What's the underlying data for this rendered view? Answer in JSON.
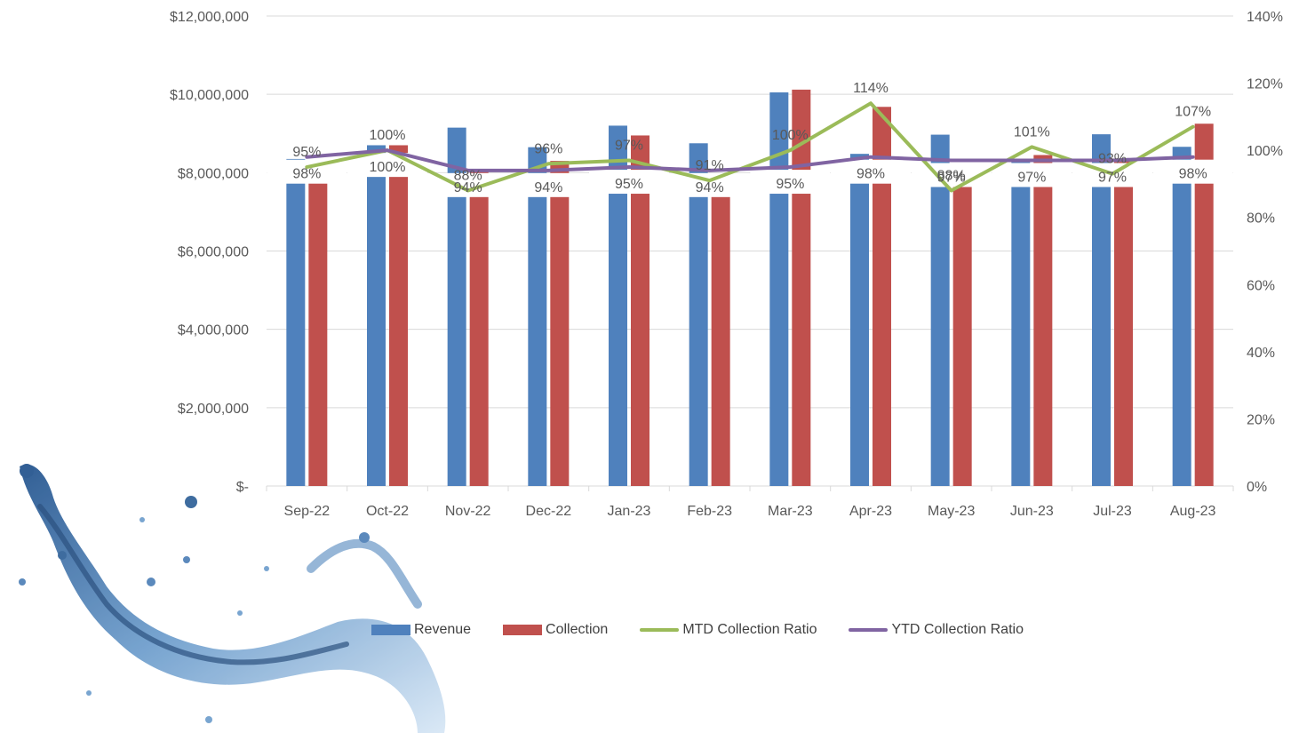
{
  "chart_data": {
    "type": "bar",
    "categories": [
      "Sep-22",
      "Oct-22",
      "Nov-22",
      "Dec-22",
      "Jan-23",
      "Feb-23",
      "Mar-23",
      "Apr-23",
      "May-23",
      "Jun-23",
      "Jul-23",
      "Aug-23"
    ],
    "y_left": {
      "ylim": [
        0,
        12000000
      ],
      "tick_labels": [
        "$-",
        "$2,000,000",
        "$4,000,000",
        "$6,000,000",
        "$8,000,000",
        "$10,000,000",
        "$12,000,000"
      ]
    },
    "y_right": {
      "ylim": [
        0,
        1.4
      ],
      "tick_labels": [
        "0%",
        "20%",
        "40%",
        "60%",
        "80%",
        "100%",
        "120%",
        "140%"
      ]
    },
    "grid": true,
    "legend_position": "bottom",
    "series": [
      {
        "name": "Revenue",
        "kind": "bar",
        "axis": "left",
        "color": "#4F81BD",
        "values": [
          8350000,
          8700000,
          9150000,
          8650000,
          9200000,
          8750000,
          10050000,
          8480000,
          8970000,
          8350000,
          8980000,
          8660000
        ]
      },
      {
        "name": "Collection",
        "kind": "bar",
        "axis": "left",
        "color": "#C0504D",
        "values": [
          7950000,
          8700000,
          8050000,
          8300000,
          8950000,
          7980000,
          10120000,
          9680000,
          7930000,
          8450000,
          8350000,
          9250000
        ]
      },
      {
        "name": "MTD Collection Ratio",
        "kind": "line",
        "axis": "right",
        "color": "#9BBB59",
        "values": [
          0.95,
          1.0,
          0.88,
          0.96,
          0.97,
          0.91,
          1.0,
          1.14,
          0.88,
          1.01,
          0.93,
          1.07
        ],
        "labels": [
          "95%",
          "100%",
          "88%",
          "96%",
          "97%",
          "91%",
          "100%",
          "114%",
          "88%",
          "101%",
          "93%",
          "107%"
        ]
      },
      {
        "name": "YTD Collection Ratio",
        "kind": "line",
        "axis": "right",
        "color": "#8064A2",
        "values": [
          0.98,
          1.0,
          0.94,
          0.94,
          0.95,
          0.94,
          0.95,
          0.98,
          0.97,
          0.97,
          0.97,
          0.98
        ],
        "labels": [
          "98%",
          "100%",
          "94%",
          "94%",
          "95%",
          "94%",
          "95%",
          "98%",
          "97%",
          "97%",
          "97%",
          "98%"
        ]
      }
    ]
  },
  "legend": {
    "revenue": "Revenue",
    "collection": "Collection",
    "mtd": "MTD Collection Ratio",
    "ytd": "YTD Collection Ratio"
  }
}
